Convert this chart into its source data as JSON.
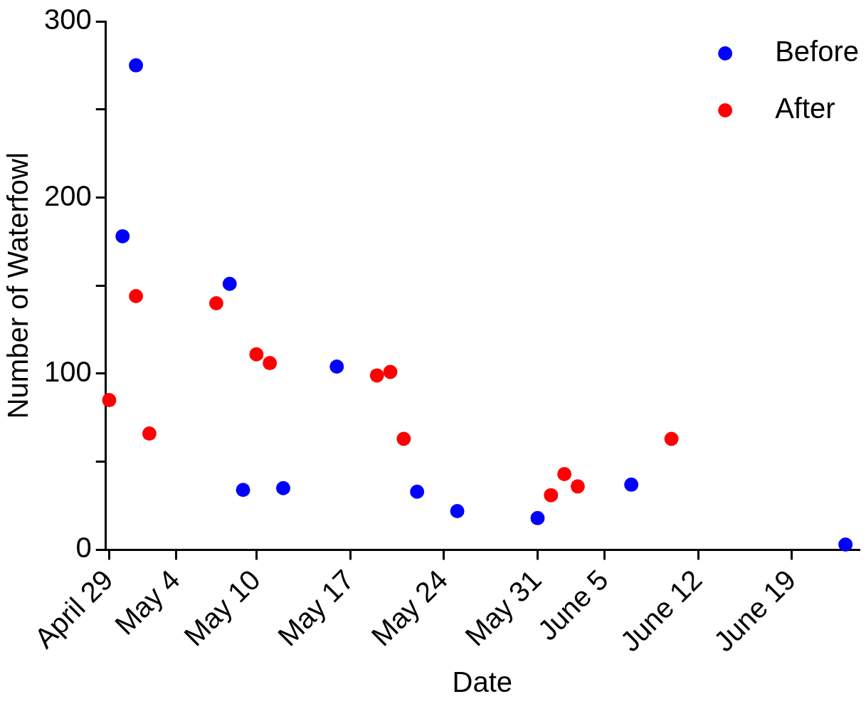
{
  "chart_data": {
    "type": "scatter",
    "xlabel": "Date",
    "ylabel": "Number of Waterfowl",
    "xlim": [
      "--04-28T18:00",
      "--06-24"
    ],
    "xticks": [
      {
        "value": "--04-29",
        "label": "April 29"
      },
      {
        "value": "--05-04",
        "label": "May 4"
      },
      {
        "value": "--05-10",
        "label": "May 10"
      },
      {
        "value": "--05-17",
        "label": "May 17"
      },
      {
        "value": "--05-24",
        "label": "May 24"
      },
      {
        "value": "--05-31",
        "label": "May 31"
      },
      {
        "value": "--06-05",
        "label": "June 5"
      },
      {
        "value": "--06-12",
        "label": "June 12"
      },
      {
        "value": "--06-19",
        "label": "June 19"
      }
    ],
    "ylim": [
      0,
      300
    ],
    "yticks": [
      0,
      {
        "value": 50,
        "label": null
      },
      100,
      {
        "value": 150,
        "label": null
      },
      200,
      {
        "value": 250,
        "label": null
      },
      300
    ],
    "marker": "circle",
    "legend": "top right",
    "series": [
      {
        "name": "Before",
        "color": "#0000ff",
        "x": [
          "--04-30",
          "--05-01",
          "--05-08",
          "--05-09",
          "--05-12",
          "--05-16",
          "--05-22",
          "--05-25",
          "--05-31",
          "--06-07",
          "--06-23"
        ],
        "values": [
          178,
          275,
          151,
          34,
          35,
          104,
          33,
          22,
          18,
          37,
          3
        ]
      },
      {
        "name": "After",
        "color": "#ff0000",
        "x": [
          "--04-29",
          "--05-01",
          "--05-02",
          "--05-07",
          "--05-10",
          "--05-11",
          "--05-19",
          "--05-20",
          "--05-21",
          "--06-01",
          "--06-02",
          "--06-03",
          "--06-10"
        ],
        "values": [
          85,
          144,
          66,
          140,
          111,
          106,
          99,
          101,
          63,
          31,
          43,
          36,
          63
        ]
      }
    ]
  }
}
